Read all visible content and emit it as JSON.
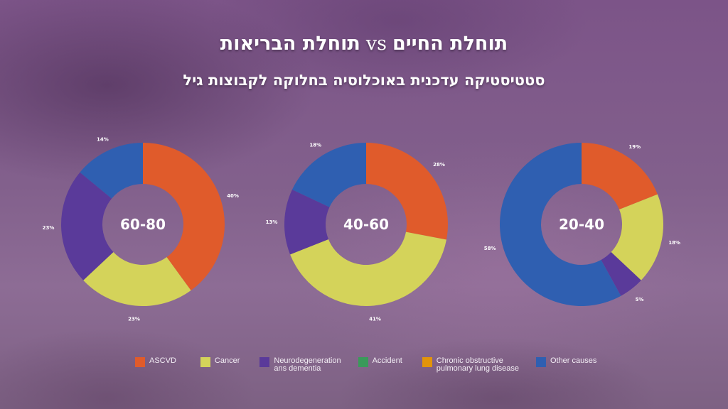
{
  "title": {
    "part1": "תוחלת החיים",
    "vs": "vs",
    "part2": "תוחלת הבריאות"
  },
  "subtitle": "סטטיסטיקה עדכנית באוכלוסיה בחלוקה לקבוצות גיל",
  "colors": {
    "ASCVD": "#e05b2b",
    "Cancer": "#d4d35a",
    "Neurodegeneration": "#5a3a9a",
    "Accident": "#3a9a5a",
    "COPD": "#e2940a",
    "Other": "#2f5fb1"
  },
  "chart_data": [
    {
      "type": "pie",
      "subtype": "donut",
      "center_label": "60-80",
      "start": "top, clockwise",
      "slices": [
        {
          "category": "ASCVD",
          "value": 40,
          "label": "40%"
        },
        {
          "category": "Cancer",
          "value": 23,
          "label": "23%"
        },
        {
          "category": "Neurodegeneration",
          "value": 23,
          "label": "23%"
        },
        {
          "category": "Other",
          "value": 14,
          "label": "14%"
        }
      ]
    },
    {
      "type": "pie",
      "subtype": "donut",
      "center_label": "40-60",
      "start": "top, clockwise",
      "slices": [
        {
          "category": "ASCVD",
          "value": 28,
          "label": "28%"
        },
        {
          "category": "Cancer",
          "value": 41,
          "label": "41%"
        },
        {
          "category": "Neurodegeneration",
          "value": 13,
          "label": "13%"
        },
        {
          "category": "Other",
          "value": 18,
          "label": "18%"
        }
      ]
    },
    {
      "type": "pie",
      "subtype": "donut",
      "center_label": "20-40",
      "start": "top, clockwise",
      "slices": [
        {
          "category": "ASCVD",
          "value": 19,
          "label": "19%"
        },
        {
          "category": "Cancer",
          "value": 18,
          "label": "18%"
        },
        {
          "category": "Neurodegeneration",
          "value": 5,
          "label": "5%"
        },
        {
          "category": "Other",
          "value": 58,
          "label": "58%"
        }
      ]
    }
  ],
  "legend": {
    "placement": "bottom",
    "items": [
      {
        "key": "ASCVD",
        "label": "ASCVD"
      },
      {
        "key": "Cancer",
        "label": "Cancer"
      },
      {
        "key": "Neurodegeneration",
        "label": "Neurodegeneration\nans dementia"
      },
      {
        "key": "Accident",
        "label": "Accident"
      },
      {
        "key": "COPD",
        "label": "Chronic obstructive\npulmonary lung disease"
      },
      {
        "key": "Other",
        "label": "Other causes"
      }
    ]
  }
}
